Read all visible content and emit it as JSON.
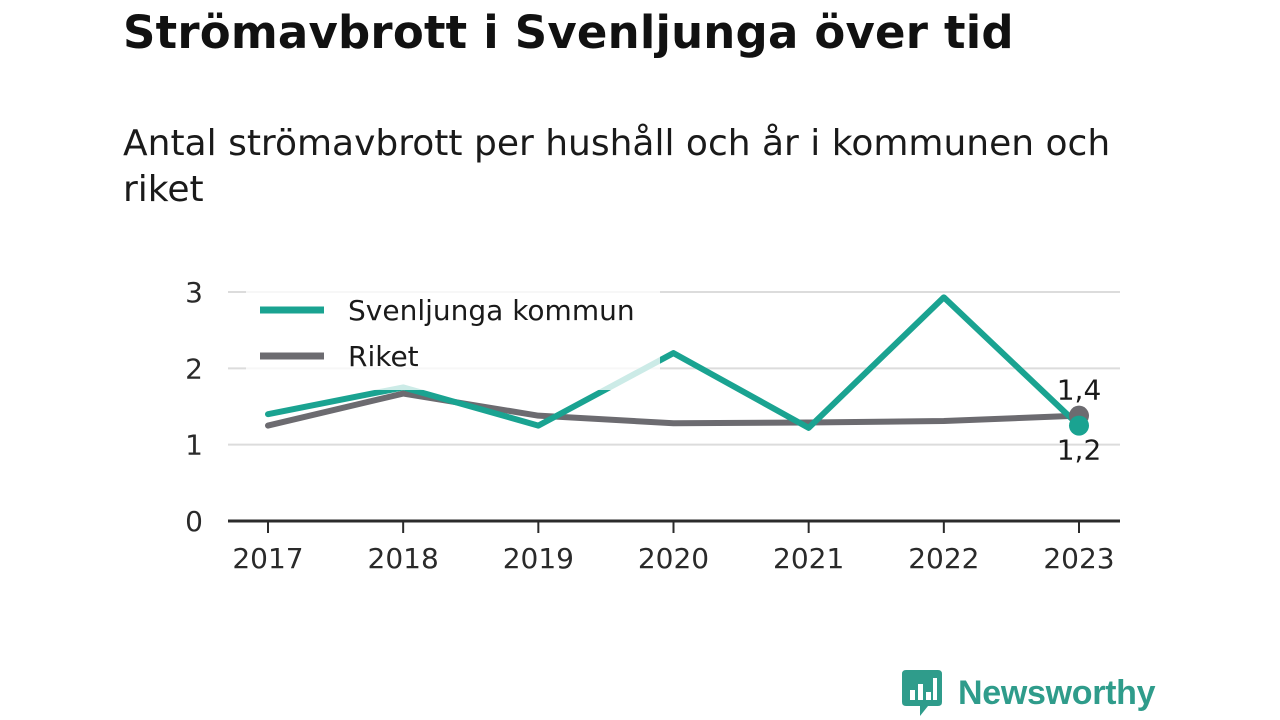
{
  "title": "Strömavbrott i Svenljunga över tid",
  "subtitle": "Antal strömavbrott per hushåll och år i kommunen och riket",
  "brand": {
    "name": "Newsworthy"
  },
  "colors": {
    "svenljunga": "#1aa391",
    "riket": "#6c6b70",
    "grid": "#dcdcdc",
    "axis": "#2b2b2b",
    "brand": "#2f9c8b"
  },
  "chart_data": {
    "type": "line",
    "x": [
      "2017",
      "2018",
      "2019",
      "2020",
      "2021",
      "2022",
      "2023"
    ],
    "y_ticks": [
      "0",
      "1",
      "2",
      "3"
    ],
    "ylim": [
      0,
      3
    ],
    "grid": true,
    "legend_position": "top-left",
    "series": [
      {
        "name": "Svenljunga kommun",
        "color": "#1aa391",
        "values": [
          1.4,
          1.75,
          1.25,
          2.2,
          1.22,
          2.93,
          1.25
        ],
        "end_label": "1,2"
      },
      {
        "name": "Riket",
        "color": "#6c6b70",
        "values": [
          1.25,
          1.67,
          1.38,
          1.28,
          1.29,
          1.31,
          1.38
        ],
        "end_label": "1,4"
      }
    ]
  }
}
